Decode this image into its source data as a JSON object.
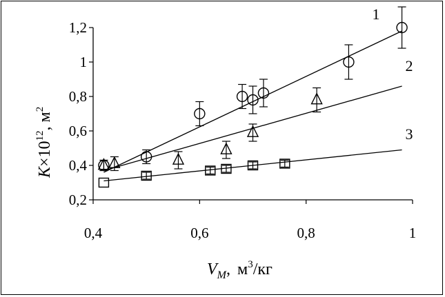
{
  "chart_data": {
    "type": "scatter",
    "x_axis": {
      "range": [
        0.4,
        1.0
      ],
      "ticks": [
        0.4,
        0.6,
        0.8,
        1.0
      ],
      "tick_labels": [
        "0,4",
        "0,6",
        "0,8",
        "1"
      ]
    },
    "y_axis": {
      "range": [
        0.2,
        1.2
      ],
      "ticks": [
        0.2,
        0.4,
        0.6,
        0.8,
        1.0,
        1.2
      ],
      "tick_labels": [
        "0,2",
        "0,4",
        "0,6",
        "0,8",
        "1",
        "1,2"
      ]
    },
    "xlabel": {
      "symbol": "V",
      "subscript": "M",
      "separator": ",",
      "unit_main": "м",
      "unit_exp": "3",
      "unit_rest": "/кг"
    },
    "ylabel": {
      "symbol": "K",
      "times": "×10",
      "exp": "12",
      "unit": ", м",
      "unit_exp": "2"
    },
    "grid": false,
    "series": [
      {
        "name": "1",
        "marker": "circle",
        "points": [
          {
            "x": 0.42,
            "y": 0.4,
            "err": 0.03
          },
          {
            "x": 0.5,
            "y": 0.45,
            "err": 0.04
          },
          {
            "x": 0.6,
            "y": 0.7,
            "err": 0.07
          },
          {
            "x": 0.68,
            "y": 0.8,
            "err": 0.07
          },
          {
            "x": 0.7,
            "y": 0.78,
            "err": 0.08
          },
          {
            "x": 0.72,
            "y": 0.82,
            "err": 0.08
          },
          {
            "x": 0.88,
            "y": 1.0,
            "err": 0.1
          },
          {
            "x": 0.98,
            "y": 1.2,
            "err": 0.12
          }
        ],
        "fit": {
          "x": [
            0.42,
            0.98
          ],
          "y": [
            0.36,
            1.18
          ]
        }
      },
      {
        "name": "2",
        "marker": "triangle",
        "points": [
          {
            "x": 0.42,
            "y": 0.4,
            "err": 0.03
          },
          {
            "x": 0.44,
            "y": 0.41,
            "err": 0.04
          },
          {
            "x": 0.56,
            "y": 0.43,
            "err": 0.05
          },
          {
            "x": 0.65,
            "y": 0.49,
            "err": 0.05
          },
          {
            "x": 0.7,
            "y": 0.59,
            "err": 0.05
          },
          {
            "x": 0.82,
            "y": 0.78,
            "err": 0.07
          }
        ],
        "fit": {
          "x": [
            0.42,
            0.98
          ],
          "y": [
            0.37,
            0.86
          ]
        }
      },
      {
        "name": "3",
        "marker": "square",
        "points": [
          {
            "x": 0.42,
            "y": 0.3,
            "err": 0.0
          },
          {
            "x": 0.5,
            "y": 0.34,
            "err": 0.02
          },
          {
            "x": 0.62,
            "y": 0.37,
            "err": 0.02
          },
          {
            "x": 0.65,
            "y": 0.38,
            "err": 0.02
          },
          {
            "x": 0.7,
            "y": 0.4,
            "err": 0.02
          },
          {
            "x": 0.76,
            "y": 0.41,
            "err": 0.02
          }
        ],
        "fit": {
          "x": [
            0.42,
            0.98
          ],
          "y": [
            0.31,
            0.49
          ]
        }
      }
    ]
  }
}
